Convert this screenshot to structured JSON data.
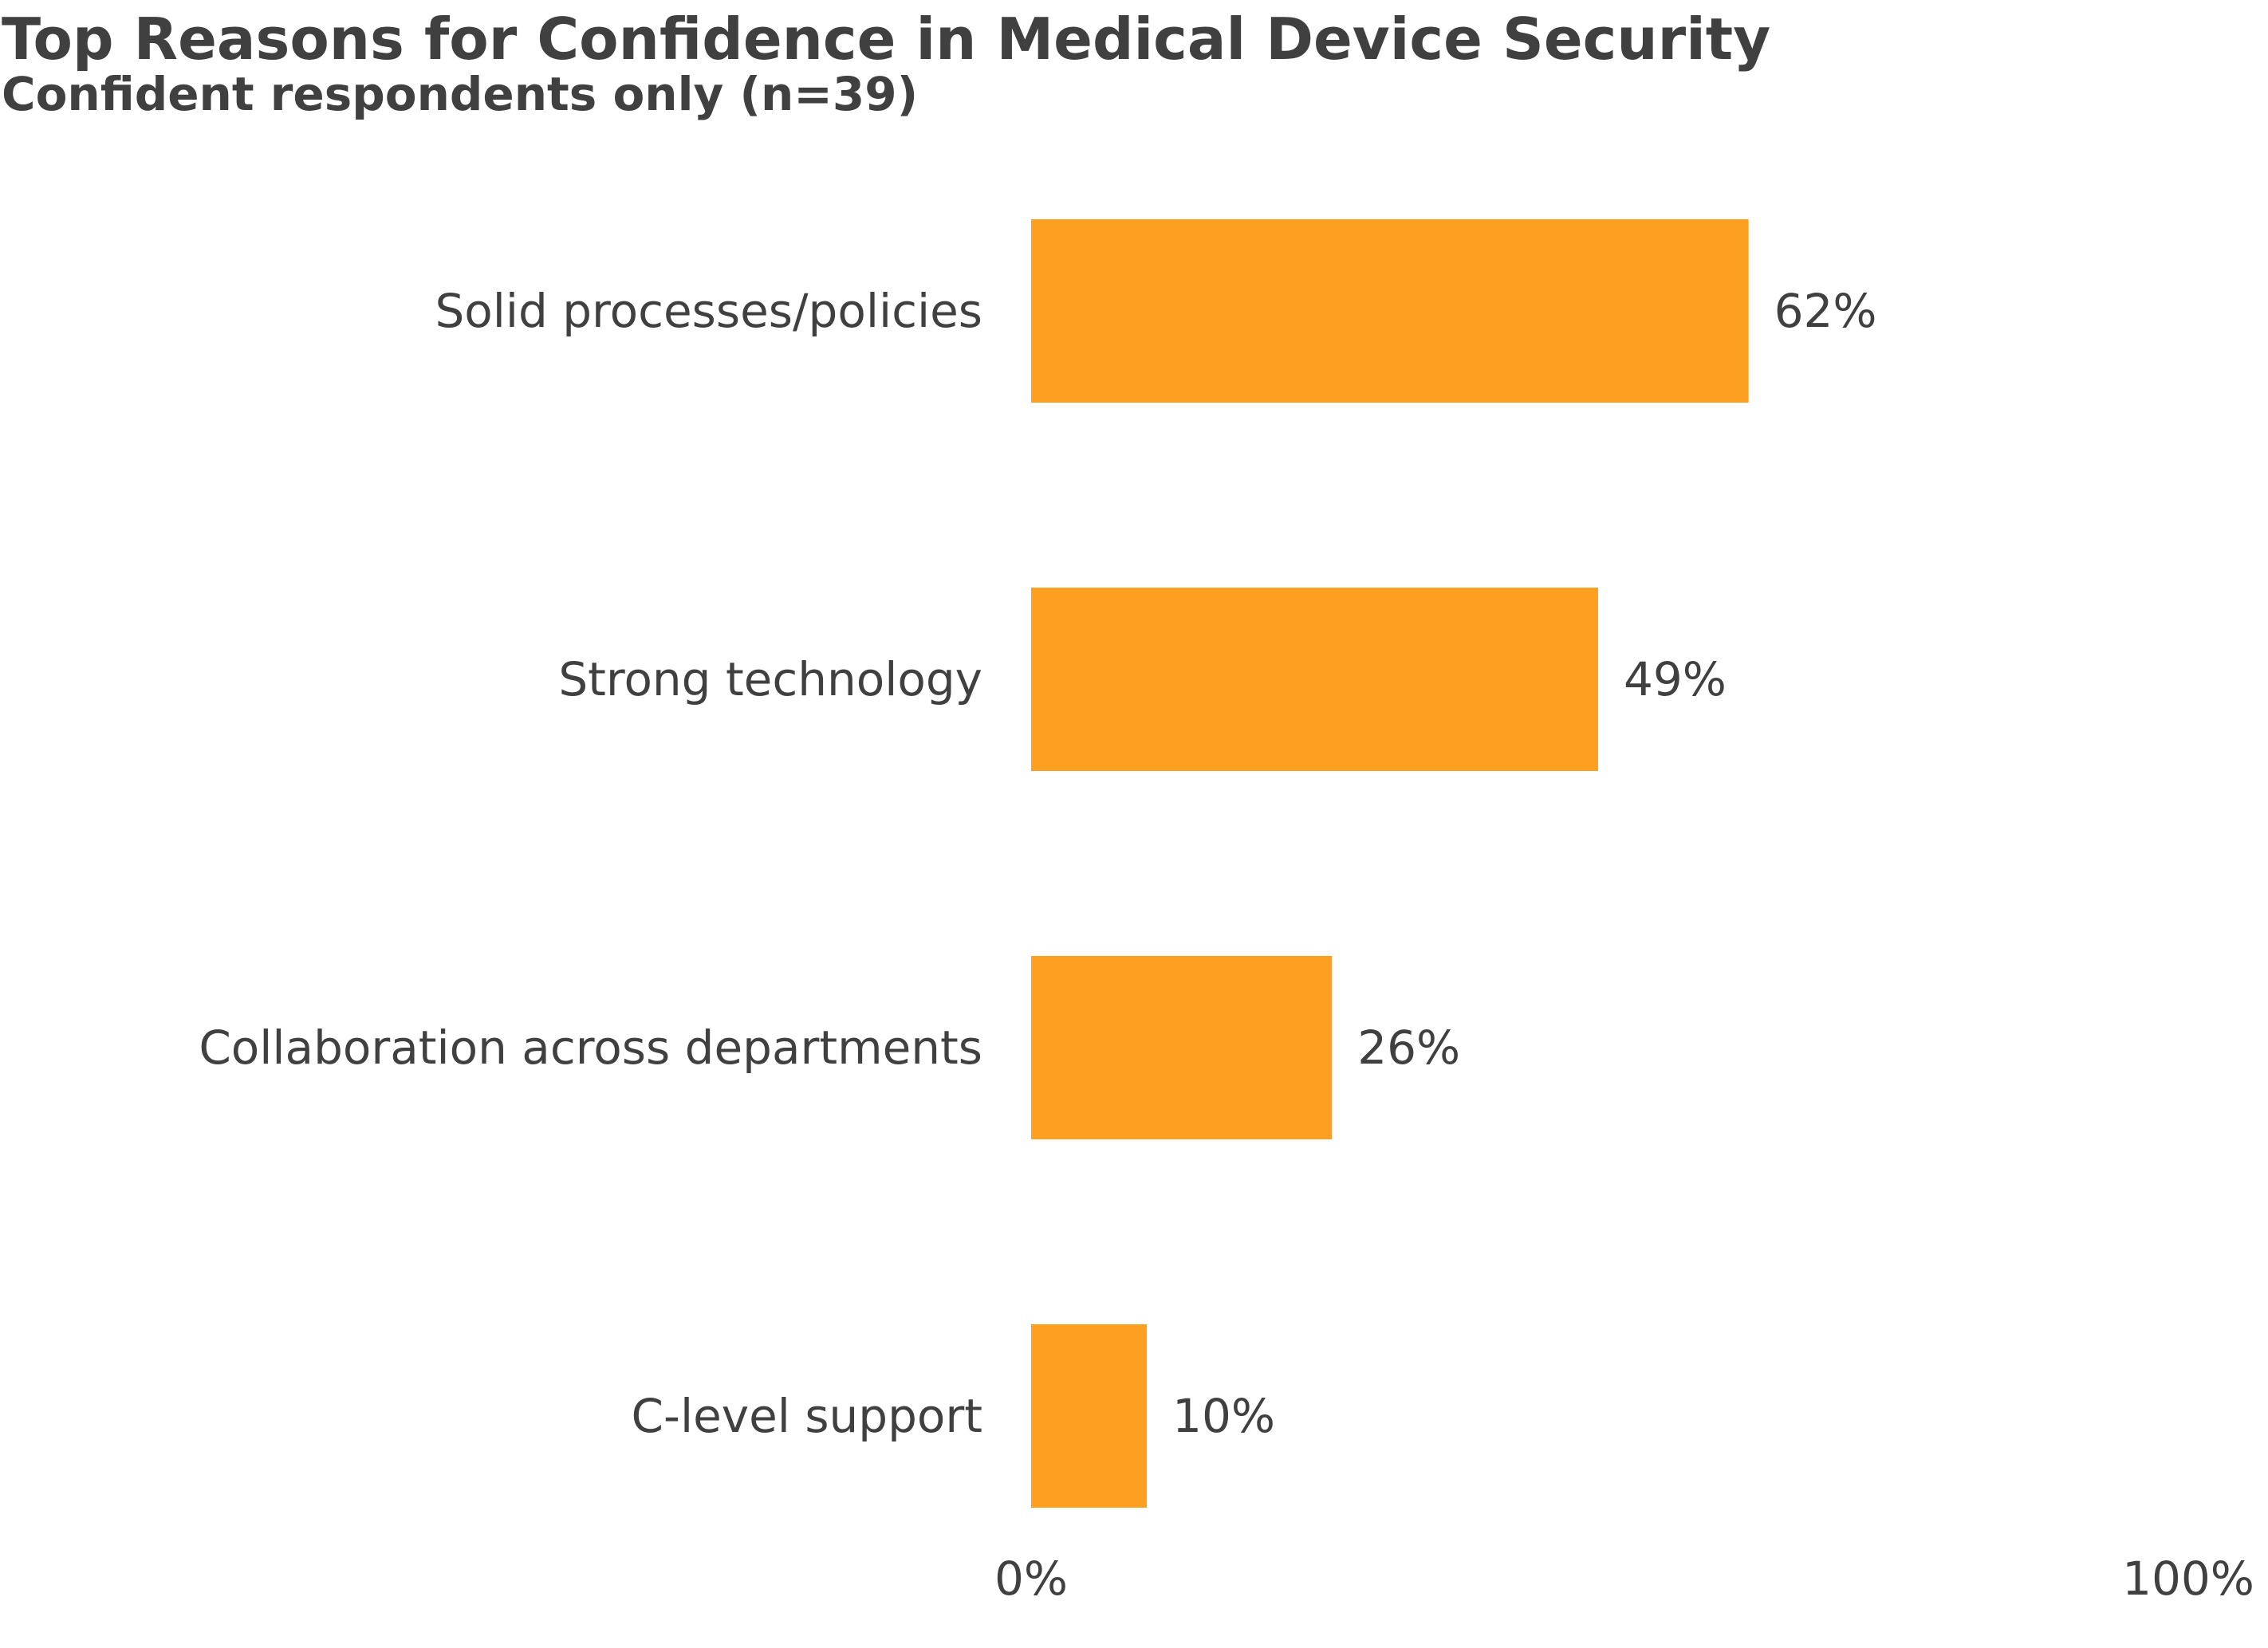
{
  "title": "Top Reasons for Confidence in Medical Device Security",
  "subtitle": "Confident respondents only (n=39)",
  "colors": {
    "bar": "#FD9F20",
    "text": "#404040",
    "background": "#FFFFFF"
  },
  "chart_data": {
    "type": "bar",
    "orientation": "horizontal",
    "title": "Top Reasons for Confidence in Medical Device Security",
    "subtitle": "Confident respondents only (n=39)",
    "categories": [
      "Solid processes/policies",
      "Strong technology",
      "Collaboration across departments",
      "C-level support"
    ],
    "values": [
      62,
      49,
      26,
      10
    ],
    "value_labels": [
      "62%",
      "49%",
      "26%",
      "10%"
    ],
    "xlim": [
      0,
      100
    ],
    "x_ticks": [
      "0%",
      "100%"
    ],
    "xlabel": "",
    "ylabel": "",
    "grid": false,
    "legend": "none"
  }
}
